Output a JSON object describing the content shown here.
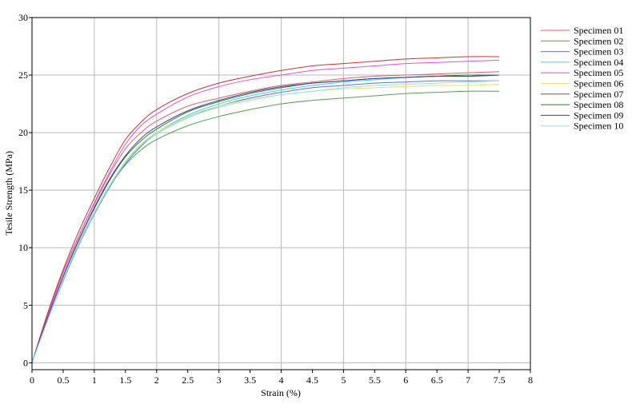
{
  "chart_data": {
    "type": "line",
    "xlabel": "Strain (%)",
    "ylabel": "Tesile Strength (MPa)",
    "xlim": [
      0,
      8
    ],
    "ylim": [
      -0.6,
      30
    ],
    "x_ticks": [
      0,
      0.5,
      1,
      1.5,
      2,
      2.5,
      3,
      3.5,
      4,
      4.5,
      5,
      5.5,
      6,
      6.5,
      7,
      7.5,
      8
    ],
    "x_tick_labels": [
      "0",
      "0.5",
      "1",
      "1.5",
      "2",
      "2.5",
      "3",
      "3.5",
      "4",
      "4.5",
      "5",
      "5.5",
      "6",
      "6.5",
      "7",
      "7.5",
      "8"
    ],
    "y_ticks": [
      0,
      5,
      10,
      15,
      20,
      25,
      30
    ],
    "y_tick_labels": [
      "0",
      "5",
      "10",
      "15",
      "20",
      "25",
      "30"
    ],
    "grid": true,
    "legend_position": "right",
    "x": [
      0,
      0.25,
      0.5,
      0.75,
      1,
      1.25,
      1.5,
      1.75,
      2,
      2.5,
      3,
      3.5,
      4,
      4.5,
      5,
      5.5,
      6,
      6.5,
      7,
      7.5
    ],
    "series": [
      {
        "name": "Specimen 01",
        "color": "#e0606a",
        "values": [
          0,
          4.2,
          7.9,
          11.0,
          13.8,
          16.4,
          18.6,
          20.0,
          21.0,
          22.3,
          23.0,
          23.6,
          24.1,
          24.4,
          24.7,
          24.9,
          25.0,
          25.1,
          25.2,
          25.3
        ]
      },
      {
        "name": "Specimen 02",
        "color": "#5a9a5a",
        "values": [
          0,
          3.9,
          7.4,
          10.5,
          13.1,
          15.4,
          17.2,
          18.5,
          19.4,
          20.6,
          21.4,
          22.0,
          22.5,
          22.8,
          23.0,
          23.2,
          23.4,
          23.5,
          23.6,
          23.6
        ]
      },
      {
        "name": "Specimen 03",
        "color": "#6a6ae0",
        "values": [
          0,
          3.7,
          7.1,
          10.2,
          12.9,
          15.3,
          17.3,
          18.8,
          19.9,
          21.3,
          22.3,
          23.0,
          23.5,
          23.9,
          24.1,
          24.3,
          24.4,
          24.5,
          24.5,
          24.5
        ]
      },
      {
        "name": "Specimen 04",
        "color": "#40d0f0",
        "values": [
          0,
          3.8,
          7.3,
          10.4,
          13.0,
          15.4,
          17.4,
          18.9,
          20.0,
          21.5,
          22.5,
          23.2,
          23.7,
          24.1,
          24.4,
          24.6,
          24.8,
          24.9,
          24.9,
          25.0
        ]
      },
      {
        "name": "Specimen 05",
        "color": "#e050e0",
        "values": [
          0,
          4.1,
          7.8,
          11.0,
          13.9,
          16.6,
          19.0,
          20.6,
          21.6,
          23.1,
          24.0,
          24.6,
          25.0,
          25.4,
          25.6,
          25.8,
          26.0,
          26.1,
          26.2,
          26.3
        ]
      },
      {
        "name": "Specimen 06",
        "color": "#e8e060",
        "values": [
          0,
          3.8,
          7.3,
          10.4,
          13.1,
          15.5,
          17.5,
          19.0,
          20.0,
          21.4,
          22.3,
          22.9,
          23.3,
          23.6,
          23.8,
          23.9,
          24.0,
          24.1,
          24.1,
          24.2
        ]
      },
      {
        "name": "Specimen 07",
        "color": "#d03030",
        "values": [
          0,
          4.3,
          8.1,
          11.4,
          14.3,
          17.0,
          19.4,
          20.9,
          22.0,
          23.4,
          24.3,
          24.9,
          25.4,
          25.8,
          26.0,
          26.2,
          26.4,
          26.5,
          26.6,
          26.6
        ]
      },
      {
        "name": "Specimen 08",
        "color": "#2a7a2a",
        "values": [
          0,
          3.9,
          7.5,
          10.7,
          13.4,
          15.9,
          17.9,
          19.3,
          20.3,
          21.8,
          22.7,
          23.4,
          23.9,
          24.3,
          24.5,
          24.7,
          24.8,
          24.9,
          25.0,
          25.0
        ]
      },
      {
        "name": "Specimen 09",
        "color": "#4040a0",
        "values": [
          0,
          3.9,
          7.5,
          10.7,
          13.5,
          16.0,
          18.0,
          19.5,
          20.5,
          21.9,
          22.8,
          23.5,
          24.0,
          24.3,
          24.5,
          24.7,
          24.8,
          24.9,
          24.9,
          25.0
        ]
      },
      {
        "name": "Specimen 10",
        "color": "#80e8f8",
        "values": [
          0,
          3.7,
          7.2,
          10.3,
          13.0,
          15.4,
          17.4,
          18.9,
          19.9,
          21.3,
          22.2,
          22.8,
          23.3,
          23.6,
          23.9,
          24.1,
          24.2,
          24.3,
          24.4,
          24.5
        ]
      }
    ]
  }
}
